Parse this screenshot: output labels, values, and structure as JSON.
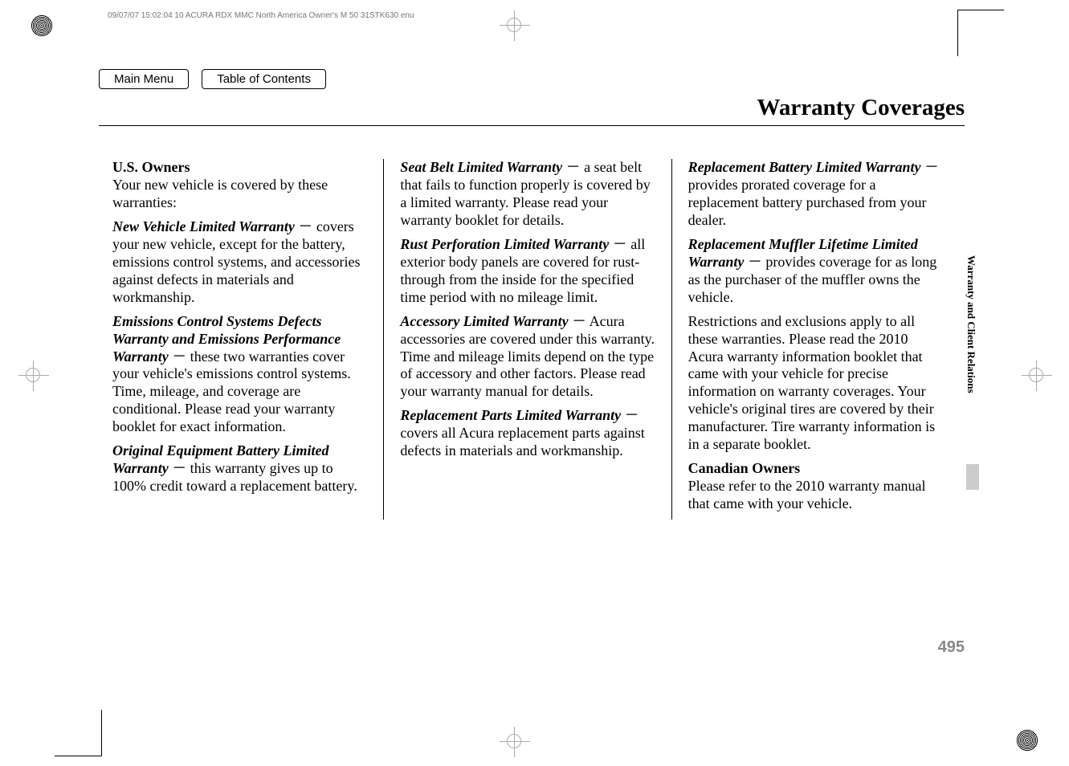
{
  "meta": {
    "header_text": "09/07/07 15:02:04   10 ACURA RDX MMC North America Owner's M 50 31STK630 enu"
  },
  "nav": {
    "main_menu": "Main Menu",
    "toc": "Table of Contents"
  },
  "title": "Warranty Coverages",
  "side_tab": "Warranty and Client Relations",
  "page_number": "495",
  "col1": {
    "us_owners_head": "U.S. Owners",
    "us_owners_body": "Your new vehicle is covered by these warranties:",
    "w1_name": "New Vehicle Limited Warranty",
    "w1_body": " － covers your new vehicle, except for the battery, emissions control systems, and accessories against defects in materials and workmanship.",
    "w2_name": "Emissions Control Systems Defects Warranty and Emissions Performance Warranty",
    "w2_body": " － these two warranties cover your vehicle's emissions control systems. Time, mileage, and coverage are conditional. Please read your warranty booklet for exact information.",
    "w3_name": "Original Equipment Battery Limited Warranty",
    "w3_body": " － this warranty gives up to 100% credit toward a replacement battery."
  },
  "col2": {
    "w4_name": "Seat Belt Limited Warranty",
    "w4_body": " － a seat belt that fails to function properly is covered by a limited warranty. Please read your warranty booklet for details.",
    "w5_name": "Rust Perforation Limited Warranty",
    "w5_body": " － all exterior body panels are covered for rust-through from the inside for the specified time period with no mileage limit.",
    "w6_name": "Accessory Limited Warranty",
    "w6_body": " － Acura accessories are covered under this warranty. Time and mileage limits depend on the type of accessory and other factors. Please read your warranty manual for details.",
    "w7_name": "Replacement Parts Limited Warranty",
    "w7_body": " － covers all Acura replacement parts against defects in materials and workmanship."
  },
  "col3": {
    "w8_name": "Replacement Battery Limited Warranty",
    "w8_body": " － provides prorated coverage for a replacement battery purchased from your dealer.",
    "w9_name": "Replacement Muffler Lifetime Limited Warranty",
    "w9_body": " － provides coverage for as long as the purchaser of the muffler owns the vehicle.",
    "restrictions": "Restrictions and exclusions apply to all these warranties. Please read the 2010 Acura warranty information booklet that came with your vehicle for precise information on warranty coverages. Your vehicle's original tires are covered by their manufacturer. Tire warranty information is in a separate booklet.",
    "canadian_head": "Canadian Owners",
    "canadian_body": "Please refer to the 2010 warranty manual that came with your vehicle."
  }
}
